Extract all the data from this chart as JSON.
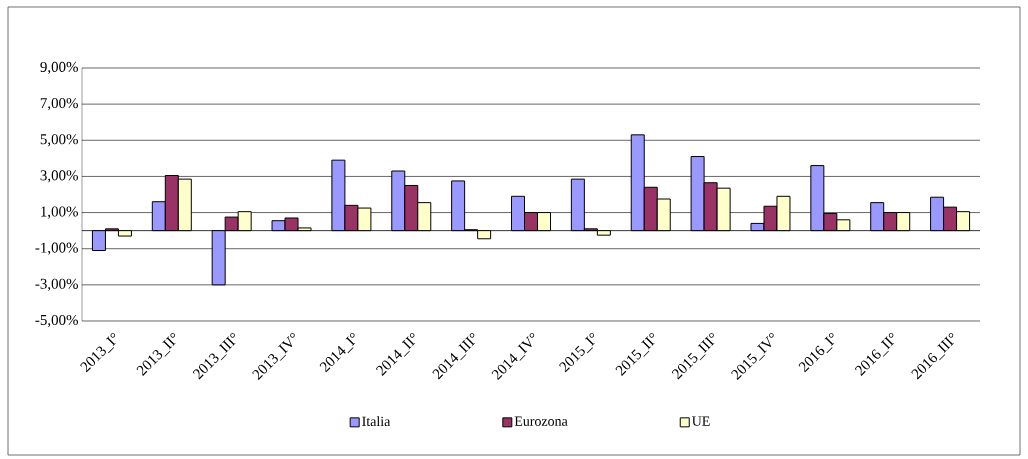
{
  "chart_data": {
    "type": "bar",
    "categories": [
      "2013_I°",
      "2013_II°",
      "2013_III°",
      "2013_IV°",
      "2014_I°",
      "2014_II°",
      "2014_III°",
      "2014_IV°",
      "2015_I°",
      "2015_II°",
      "2015_III°",
      "2015_IV°",
      "2016_I°",
      "2016_II°",
      "2016_III°"
    ],
    "series": [
      {
        "name": "Italia",
        "color": "#9999ff",
        "values": [
          -1.1,
          1.6,
          -3.0,
          0.55,
          3.9,
          3.3,
          2.75,
          1.9,
          2.85,
          5.3,
          4.1,
          0.4,
          3.6,
          1.55,
          1.85
        ]
      },
      {
        "name": "Eurozona",
        "color": "#993366",
        "values": [
          0.1,
          3.05,
          0.75,
          0.7,
          1.4,
          2.5,
          0.05,
          1.0,
          0.1,
          2.4,
          2.65,
          1.35,
          0.95,
          1.0,
          1.3
        ]
      },
      {
        "name": "UE",
        "color": "#ffffcc",
        "values": [
          -0.3,
          2.85,
          1.05,
          0.15,
          1.25,
          1.55,
          -0.45,
          1.0,
          -0.25,
          1.75,
          2.35,
          1.9,
          0.6,
          1.0,
          1.05
        ]
      }
    ],
    "ylim": [
      -5,
      9
    ],
    "yticks": [
      {
        "value": -5,
        "label": "-5,00%"
      },
      {
        "value": -3,
        "label": "-3,00%"
      },
      {
        "value": -1,
        "label": "-1,00%"
      },
      {
        "value": 1,
        "label": "1,00%"
      },
      {
        "value": 3,
        "label": "3,00%"
      },
      {
        "value": 5,
        "label": "5,00%"
      },
      {
        "value": 7,
        "label": "7,00%"
      },
      {
        "value": 9,
        "label": "9,00%"
      }
    ],
    "grid": "y",
    "legend": "bottom"
  }
}
